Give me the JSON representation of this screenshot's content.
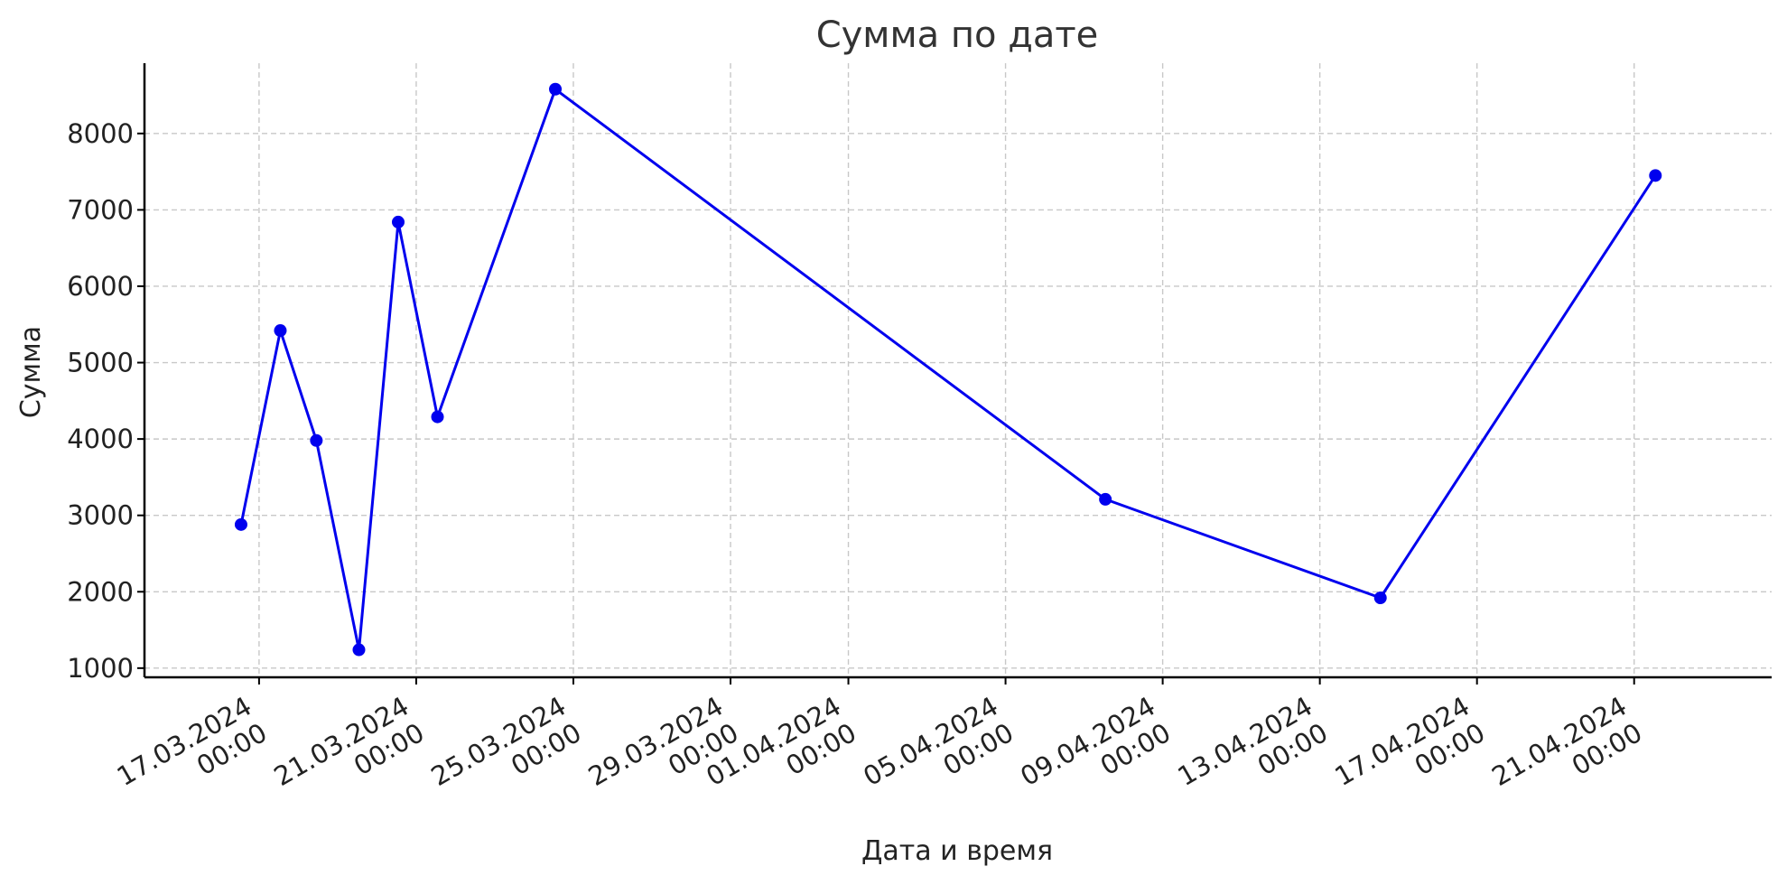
{
  "chart_data": {
    "type": "line",
    "title": "Сумма по дате",
    "xlabel": "Дата и время",
    "ylabel": "Сумма",
    "xlim": [
      "2024-03-14 02:00",
      "2024-04-24 12:00"
    ],
    "ylim": [
      880,
      8920
    ],
    "grid": true,
    "color": "#0000ee",
    "x_ticks": [
      {
        "date": "2024-03-17 00:00",
        "line1": "17.03.2024",
        "line2": "00:00"
      },
      {
        "date": "2024-03-21 00:00",
        "line1": "21.03.2024",
        "line2": "00:00"
      },
      {
        "date": "2024-03-25 00:00",
        "line1": "25.03.2024",
        "line2": "00:00"
      },
      {
        "date": "2024-03-29 00:00",
        "line1": "29.03.2024",
        "line2": "00:00"
      },
      {
        "date": "2024-04-01 00:00",
        "line1": "01.04.2024",
        "line2": "00:00"
      },
      {
        "date": "2024-04-05 00:00",
        "line1": "05.04.2024",
        "line2": "00:00"
      },
      {
        "date": "2024-04-09 00:00",
        "line1": "09.04.2024",
        "line2": "00:00"
      },
      {
        "date": "2024-04-13 00:00",
        "line1": "13.04.2024",
        "line2": "00:00"
      },
      {
        "date": "2024-04-17 00:00",
        "line1": "17.04.2024",
        "line2": "00:00"
      },
      {
        "date": "2024-04-21 00:00",
        "line1": "21.04.2024",
        "line2": "00:00"
      }
    ],
    "y_ticks": [
      1000,
      2000,
      3000,
      4000,
      5000,
      6000,
      7000,
      8000
    ],
    "x": [
      "2024-03-16 13:00",
      "2024-03-17 13:00",
      "2024-03-18 11:00",
      "2024-03-19 13:00",
      "2024-03-20 13:00",
      "2024-03-21 13:00",
      "2024-03-24 13:00",
      "2024-04-07 13:00",
      "2024-04-14 13:00",
      "2024-04-21 13:00"
    ],
    "y": [
      2880,
      5420,
      3980,
      1240,
      6840,
      4290,
      8580,
      3210,
      1920,
      7450
    ]
  }
}
